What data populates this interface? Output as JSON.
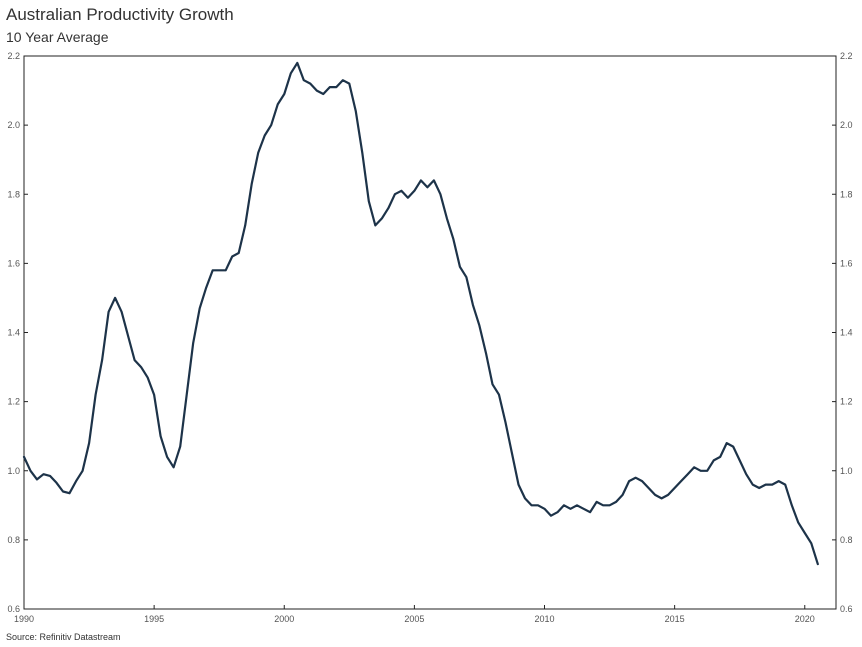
{
  "header": {
    "title": "Australian Productivity Growth",
    "subtitle": "10 Year Average"
  },
  "footer": {
    "source": "Source: Refinitiv Datastream"
  },
  "colors": {
    "line": "#1d3349",
    "axis": "#222222",
    "text": "#555555"
  },
  "chart_data": {
    "type": "line",
    "title": "Australian Productivity Growth",
    "subtitle": "10 Year Average",
    "xlabel": "",
    "ylabel": "",
    "xlim": [
      1990,
      2021.2
    ],
    "ylim": [
      0.6,
      2.2
    ],
    "grid": false,
    "legend": "none",
    "x_ticks": [
      "1990",
      "1995",
      "2000",
      "2005",
      "2010",
      "2015",
      "2020"
    ],
    "x_tick_values": [
      1990,
      1995,
      2000,
      2005,
      2010,
      2015,
      2020
    ],
    "y_ticks": [
      "0.6",
      "0.8",
      "1.0",
      "1.2",
      "1.4",
      "1.6",
      "1.8",
      "2.0",
      "2.2"
    ],
    "y_tick_values": [
      0.6,
      0.8,
      1.0,
      1.2,
      1.4,
      1.6,
      1.8,
      2.0,
      2.2
    ],
    "series": [
      {
        "x": [
          1990.0,
          1990.25,
          1990.5,
          1990.75,
          1991.0,
          1991.25,
          1991.5,
          1991.75,
          1992.0,
          1992.25,
          1992.5,
          1992.75,
          1993.0,
          1993.25,
          1993.5,
          1993.75,
          1994.0,
          1994.25,
          1994.5,
          1994.75,
          1995.0,
          1995.25,
          1995.5,
          1995.75,
          1996.0,
          1996.25,
          1996.5,
          1996.75,
          1997.0,
          1997.25,
          1997.5,
          1997.75,
          1998.0,
          1998.25,
          1998.5,
          1998.75,
          1999.0,
          1999.25,
          1999.5,
          1999.75,
          2000.0,
          2000.25,
          2000.5,
          2000.75,
          2001.0,
          2001.25,
          2001.5,
          2001.75,
          2002.0,
          2002.25,
          2002.5,
          2002.75,
          2003.0,
          2003.25,
          2003.5,
          2003.75,
          2004.0,
          2004.25,
          2004.5,
          2004.75,
          2005.0,
          2005.25,
          2005.5,
          2005.75,
          2006.0,
          2006.25,
          2006.5,
          2006.75,
          2007.0,
          2007.25,
          2007.5,
          2007.75,
          2008.0,
          2008.25,
          2008.5,
          2008.75,
          2009.0,
          2009.25,
          2009.5,
          2009.75,
          2010.0,
          2010.25,
          2010.5,
          2010.75,
          2011.0,
          2011.25,
          2011.5,
          2011.75,
          2012.0,
          2012.25,
          2012.5,
          2012.75,
          2013.0,
          2013.25,
          2013.5,
          2013.75,
          2014.0,
          2014.25,
          2014.5,
          2014.75,
          2015.0,
          2015.25,
          2015.5,
          2015.75,
          2016.0,
          2016.25,
          2016.5,
          2016.75,
          2017.0,
          2017.25,
          2017.5,
          2017.75,
          2018.0,
          2018.25,
          2018.5,
          2018.75,
          2019.0,
          2019.25,
          2019.5,
          2019.75,
          2020.0,
          2020.25,
          2020.5
        ],
        "y": [
          1.04,
          1.0,
          0.975,
          0.99,
          0.985,
          0.965,
          0.94,
          0.935,
          0.97,
          1.0,
          1.08,
          1.22,
          1.32,
          1.46,
          1.5,
          1.46,
          1.39,
          1.32,
          1.3,
          1.27,
          1.22,
          1.1,
          1.04,
          1.01,
          1.07,
          1.22,
          1.37,
          1.47,
          1.53,
          1.58,
          1.58,
          1.58,
          1.62,
          1.63,
          1.71,
          1.83,
          1.92,
          1.97,
          2.0,
          2.06,
          2.09,
          2.15,
          2.18,
          2.13,
          2.12,
          2.1,
          2.09,
          2.11,
          2.11,
          2.13,
          2.12,
          2.04,
          1.92,
          1.78,
          1.71,
          1.73,
          1.76,
          1.8,
          1.81,
          1.79,
          1.81,
          1.84,
          1.82,
          1.84,
          1.8,
          1.73,
          1.67,
          1.59,
          1.56,
          1.48,
          1.42,
          1.34,
          1.25,
          1.22,
          1.14,
          1.05,
          0.96,
          0.92,
          0.9,
          0.9,
          0.89,
          0.87,
          0.88,
          0.9,
          0.89,
          0.9,
          0.89,
          0.88,
          0.91,
          0.9,
          0.9,
          0.91,
          0.93,
          0.97,
          0.98,
          0.97,
          0.95,
          0.93,
          0.92,
          0.93,
          0.95,
          0.97,
          0.99,
          1.01,
          1.0,
          1.0,
          1.03,
          1.04,
          1.08,
          1.07,
          1.03,
          0.99,
          0.96,
          0.95,
          0.96,
          0.96,
          0.97,
          0.96,
          0.9,
          0.85,
          0.82,
          0.79,
          0.73
        ]
      }
    ]
  }
}
